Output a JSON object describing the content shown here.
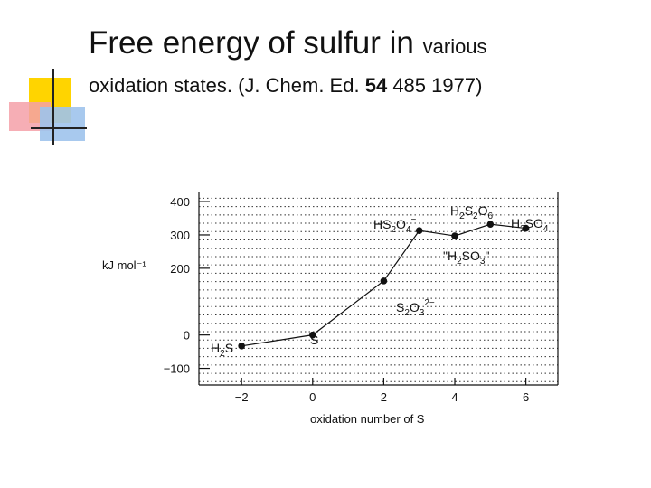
{
  "slide": {
    "title_big": "Free energy of sulfur in",
    "title_small": "various",
    "title_line2_pre": "oxidation states. (J. Chem. Ed.",
    "title_line2_bold": "54",
    "title_line2_post": "485 1977)"
  },
  "colors": {
    "accent_yellow": "#ffd400",
    "accent_red": "#f4a0a8",
    "accent_blue": "#9ec3ec",
    "line": "#111111"
  },
  "chart_data": {
    "type": "line",
    "xlabel": "oxidation number of S",
    "ylabel": "kJ mol⁻¹",
    "xlim": [
      -3.2,
      6.9
    ],
    "ylim": [
      -150,
      430
    ],
    "xticks": [
      -2,
      0,
      2,
      4,
      6
    ],
    "xtick_labels": [
      "−2",
      "0",
      "2",
      "4",
      "6"
    ],
    "yticks": [
      400,
      300,
      200,
      0,
      -100
    ],
    "ytick_labels": [
      "400",
      "300",
      "200",
      "0",
      "−100"
    ],
    "grid": "dotted horizontal",
    "series": [
      {
        "x": [
          -2,
          0,
          2,
          3,
          4,
          5,
          6
        ],
        "y": [
          -33,
          0,
          162,
          313,
          297,
          332,
          320
        ]
      }
    ],
    "annotations": [
      "H2S",
      "S",
      "S2O3 2−",
      "HS2O4 −",
      "\"H2SO3\"",
      "H2S2O6",
      "H2SO4"
    ]
  }
}
